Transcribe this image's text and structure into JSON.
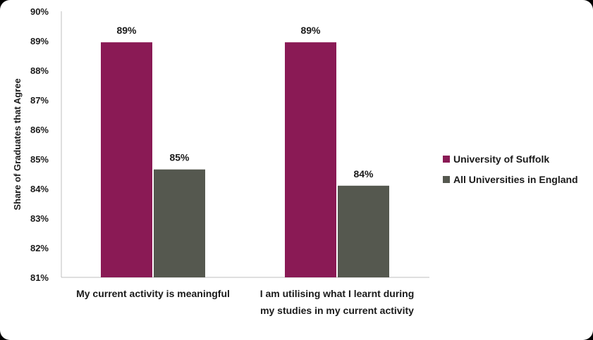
{
  "chart_data": {
    "type": "bar",
    "ylabel": "Share of Graduates that Agree",
    "ylim": [
      81,
      90
    ],
    "y_ticks": [
      "81%",
      "82%",
      "83%",
      "84%",
      "85%",
      "86%",
      "87%",
      "88%",
      "89%",
      "90%"
    ],
    "categories": [
      [
        "My current activity is meaningful"
      ],
      [
        "I am utilising what I learnt during",
        "my studies in my current activity"
      ]
    ],
    "series": [
      {
        "name": "University of Suffolk",
        "color": "#8a1a55",
        "values": [
          88.95,
          88.95
        ],
        "labels": [
          "89%",
          "89%"
        ]
      },
      {
        "name": "All Universities in England",
        "color": "#55584f",
        "values": [
          84.65,
          84.1
        ],
        "labels": [
          "85%",
          "84%"
        ]
      }
    ],
    "legend_position": "right",
    "grid": false
  }
}
